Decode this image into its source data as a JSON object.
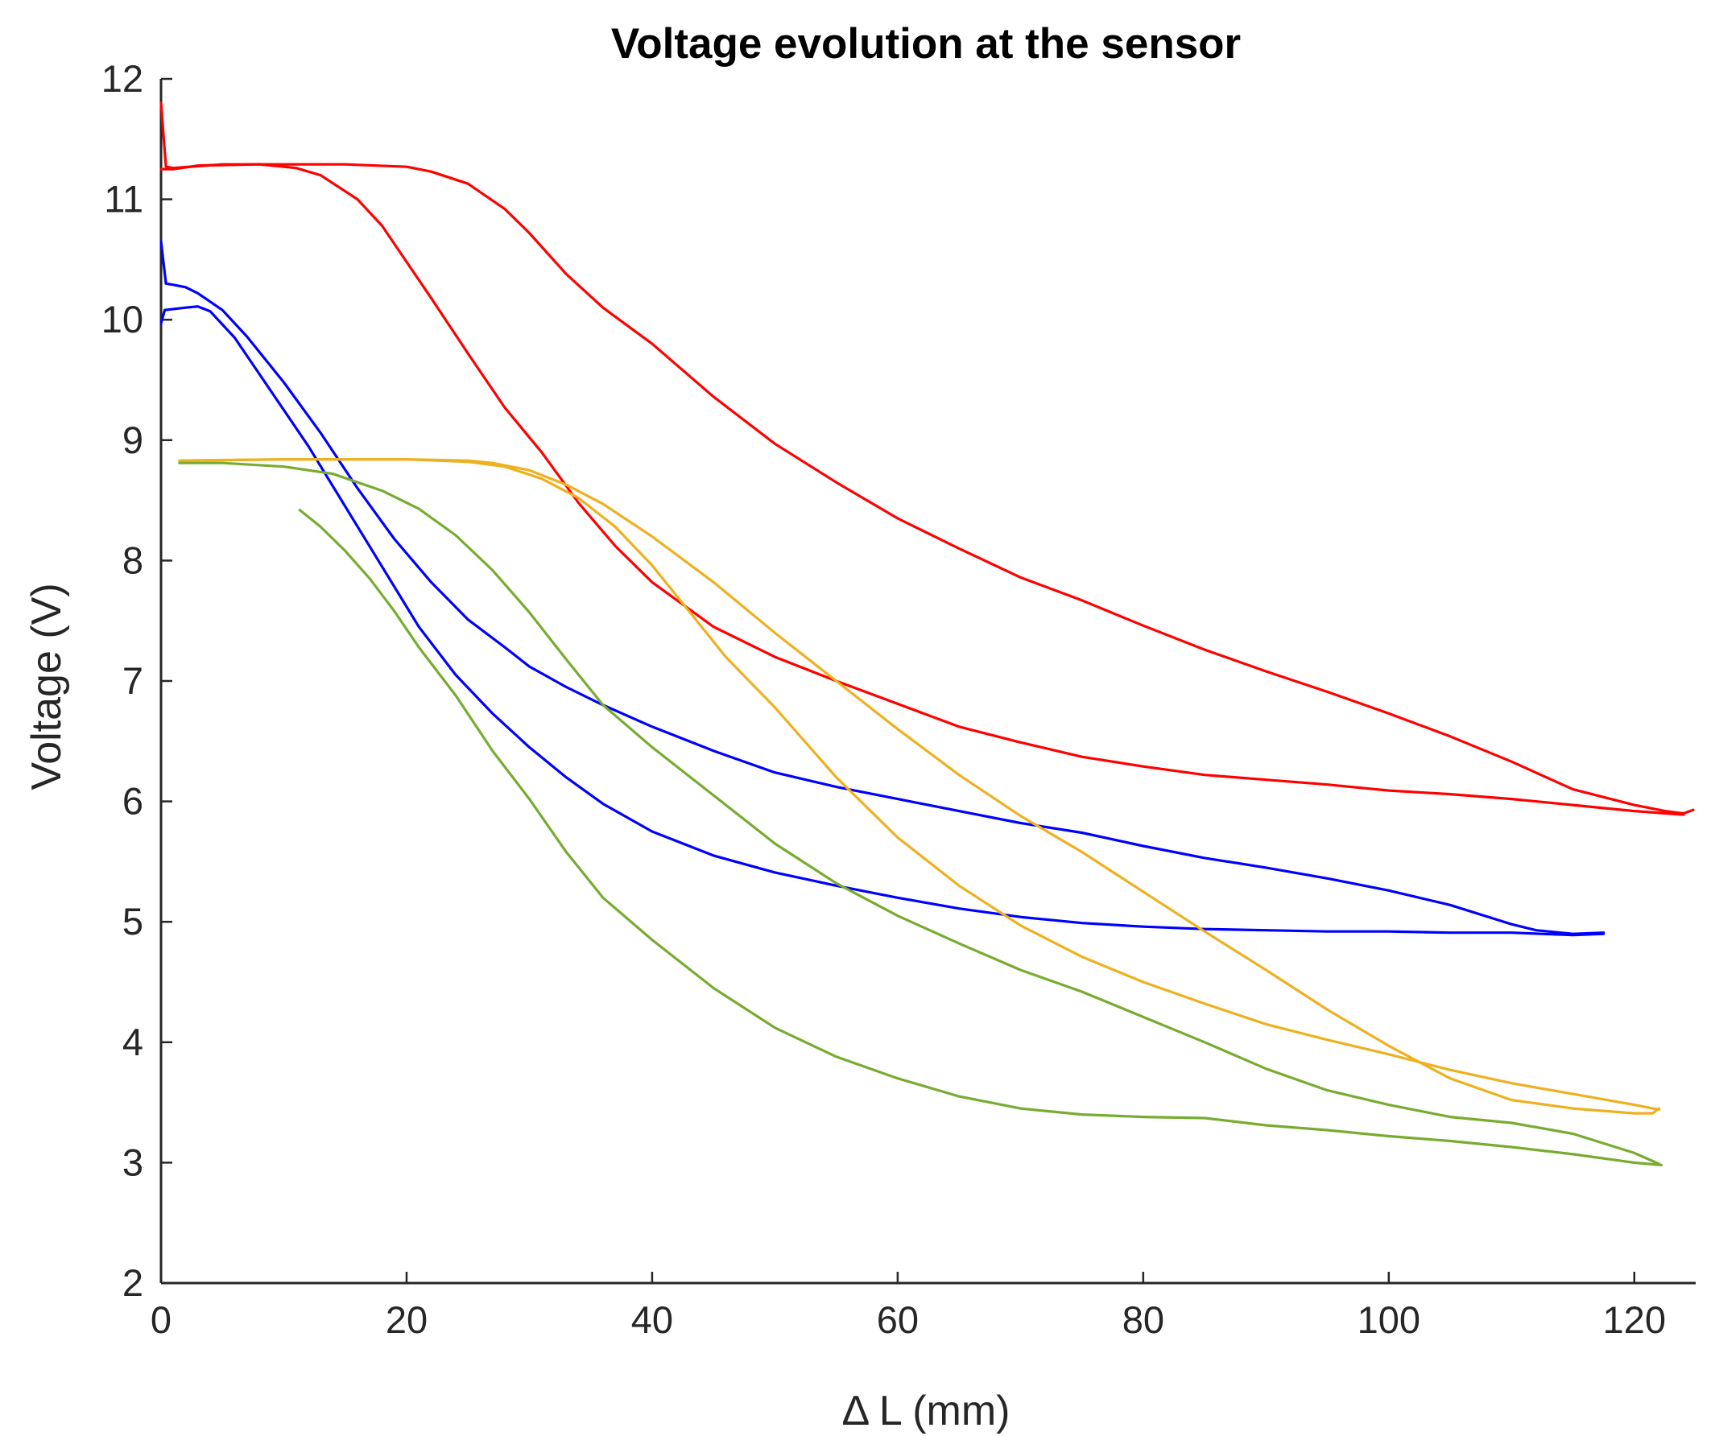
{
  "chart_data": {
    "type": "line",
    "title": "Voltage evolution at the sensor",
    "xlabel": "Δ L (mm)",
    "ylabel": "Voltage (V)",
    "xlim": [
      0,
      125
    ],
    "ylim": [
      2,
      12
    ],
    "xticks": [
      0,
      20,
      40,
      60,
      80,
      100,
      120
    ],
    "yticks": [
      2,
      3,
      4,
      5,
      6,
      7,
      8,
      9,
      10,
      11,
      12
    ],
    "grid": false,
    "legend": "none",
    "series": [
      {
        "name": "red-upper",
        "color": "#ff0000",
        "points": [
          [
            0,
            11.8
          ],
          [
            0.4,
            11.27
          ],
          [
            1,
            11.26
          ],
          [
            5,
            11.29
          ],
          [
            10,
            11.29
          ],
          [
            15,
            11.29
          ],
          [
            20,
            11.27
          ],
          [
            22,
            11.23
          ],
          [
            25,
            11.13
          ],
          [
            28,
            10.92
          ],
          [
            30,
            10.72
          ],
          [
            33,
            10.38
          ],
          [
            36,
            10.1
          ],
          [
            40,
            9.8
          ],
          [
            45,
            9.36
          ],
          [
            50,
            8.97
          ],
          [
            55,
            8.65
          ],
          [
            60,
            8.35
          ],
          [
            65,
            8.1
          ],
          [
            70,
            7.86
          ],
          [
            75,
            7.67
          ],
          [
            80,
            7.46
          ],
          [
            85,
            7.26
          ],
          [
            90,
            7.08
          ],
          [
            95,
            6.91
          ],
          [
            100,
            6.73
          ],
          [
            105,
            6.54
          ],
          [
            110,
            6.33
          ],
          [
            115,
            6.1
          ],
          [
            120,
            5.97
          ],
          [
            122.5,
            5.92
          ],
          [
            124,
            5.9
          ],
          [
            124.8,
            5.93
          ]
        ]
      },
      {
        "name": "red-lower",
        "color": "#ff0000",
        "points": [
          [
            0,
            11.25
          ],
          [
            1,
            11.25
          ],
          [
            3,
            11.28
          ],
          [
            8,
            11.29
          ],
          [
            11,
            11.26
          ],
          [
            13,
            11.2
          ],
          [
            16,
            11.0
          ],
          [
            18,
            10.78
          ],
          [
            20,
            10.48
          ],
          [
            22,
            10.18
          ],
          [
            25,
            9.72
          ],
          [
            28,
            9.27
          ],
          [
            31,
            8.9
          ],
          [
            34,
            8.48
          ],
          [
            37,
            8.12
          ],
          [
            40,
            7.82
          ],
          [
            45,
            7.45
          ],
          [
            50,
            7.2
          ],
          [
            55,
            7.0
          ],
          [
            60,
            6.81
          ],
          [
            65,
            6.62
          ],
          [
            70,
            6.49
          ],
          [
            75,
            6.37
          ],
          [
            80,
            6.29
          ],
          [
            85,
            6.22
          ],
          [
            90,
            6.18
          ],
          [
            95,
            6.14
          ],
          [
            100,
            6.09
          ],
          [
            105,
            6.06
          ],
          [
            110,
            6.02
          ],
          [
            115,
            5.97
          ],
          [
            120,
            5.92
          ],
          [
            124,
            5.89
          ]
        ]
      },
      {
        "name": "blue-upper",
        "color": "#0000ff",
        "points": [
          [
            0,
            10.65
          ],
          [
            0.4,
            10.3
          ],
          [
            1,
            10.29
          ],
          [
            2,
            10.27
          ],
          [
            3,
            10.22
          ],
          [
            5,
            10.08
          ],
          [
            7,
            9.86
          ],
          [
            10,
            9.48
          ],
          [
            13,
            9.06
          ],
          [
            16,
            8.6
          ],
          [
            19,
            8.18
          ],
          [
            22,
            7.82
          ],
          [
            25,
            7.51
          ],
          [
            28,
            7.28
          ],
          [
            30,
            7.12
          ],
          [
            33,
            6.95
          ],
          [
            36,
            6.8
          ],
          [
            40,
            6.62
          ],
          [
            45,
            6.42
          ],
          [
            50,
            6.24
          ],
          [
            55,
            6.12
          ],
          [
            60,
            6.02
          ],
          [
            65,
            5.92
          ],
          [
            70,
            5.82
          ],
          [
            75,
            5.74
          ],
          [
            80,
            5.63
          ],
          [
            85,
            5.53
          ],
          [
            90,
            5.45
          ],
          [
            95,
            5.36
          ],
          [
            100,
            5.26
          ],
          [
            105,
            5.14
          ],
          [
            110,
            4.98
          ],
          [
            112,
            4.93
          ],
          [
            115,
            4.9
          ],
          [
            117.5,
            4.91
          ]
        ]
      },
      {
        "name": "blue-lower",
        "color": "#0000ff",
        "points": [
          [
            0,
            9.97
          ],
          [
            0.3,
            10.08
          ],
          [
            2,
            10.1
          ],
          [
            3,
            10.11
          ],
          [
            4,
            10.07
          ],
          [
            6,
            9.85
          ],
          [
            8,
            9.55
          ],
          [
            10,
            9.25
          ],
          [
            12,
            8.95
          ],
          [
            15,
            8.45
          ],
          [
            18,
            7.95
          ],
          [
            21,
            7.45
          ],
          [
            24,
            7.05
          ],
          [
            27,
            6.73
          ],
          [
            30,
            6.45
          ],
          [
            33,
            6.2
          ],
          [
            36,
            5.98
          ],
          [
            40,
            5.75
          ],
          [
            45,
            5.55
          ],
          [
            50,
            5.41
          ],
          [
            55,
            5.3
          ],
          [
            60,
            5.2
          ],
          [
            65,
            5.11
          ],
          [
            70,
            5.04
          ],
          [
            75,
            4.99
          ],
          [
            80,
            4.96
          ],
          [
            85,
            4.94
          ],
          [
            90,
            4.93
          ],
          [
            95,
            4.92
          ],
          [
            100,
            4.92
          ],
          [
            105,
            4.91
          ],
          [
            110,
            4.91
          ],
          [
            115,
            4.89
          ],
          [
            117.5,
            4.9
          ]
        ]
      },
      {
        "name": "orange-upper",
        "color": "#edb120",
        "points": [
          [
            1.5,
            8.83
          ],
          [
            10,
            8.84
          ],
          [
            20,
            8.84
          ],
          [
            25,
            8.83
          ],
          [
            27,
            8.81
          ],
          [
            30,
            8.75
          ],
          [
            33,
            8.63
          ],
          [
            36,
            8.47
          ],
          [
            40,
            8.2
          ],
          [
            45,
            7.82
          ],
          [
            50,
            7.4
          ],
          [
            55,
            7.0
          ],
          [
            60,
            6.6
          ],
          [
            65,
            6.22
          ],
          [
            70,
            5.88
          ],
          [
            75,
            5.58
          ],
          [
            80,
            5.25
          ],
          [
            85,
            4.92
          ],
          [
            90,
            4.6
          ],
          [
            95,
            4.27
          ],
          [
            100,
            3.97
          ],
          [
            105,
            3.7
          ],
          [
            110,
            3.52
          ],
          [
            115,
            3.45
          ],
          [
            120,
            3.41
          ],
          [
            121.5,
            3.41
          ],
          [
            122,
            3.45
          ]
        ]
      },
      {
        "name": "orange-lower",
        "color": "#edb120",
        "points": [
          [
            1.5,
            8.83
          ],
          [
            10,
            8.84
          ],
          [
            20,
            8.84
          ],
          [
            25,
            8.82
          ],
          [
            28,
            8.78
          ],
          [
            31,
            8.68
          ],
          [
            34,
            8.52
          ],
          [
            37,
            8.28
          ],
          [
            40,
            7.96
          ],
          [
            43,
            7.58
          ],
          [
            46,
            7.2
          ],
          [
            50,
            6.78
          ],
          [
            55,
            6.2
          ],
          [
            60,
            5.7
          ],
          [
            65,
            5.3
          ],
          [
            70,
            4.97
          ],
          [
            75,
            4.71
          ],
          [
            80,
            4.5
          ],
          [
            85,
            4.32
          ],
          [
            90,
            4.15
          ],
          [
            95,
            4.02
          ],
          [
            100,
            3.9
          ],
          [
            105,
            3.77
          ],
          [
            110,
            3.66
          ],
          [
            115,
            3.57
          ],
          [
            120,
            3.48
          ],
          [
            122,
            3.44
          ]
        ]
      },
      {
        "name": "green-upper",
        "color": "#77ac30",
        "points": [
          [
            1.5,
            8.81
          ],
          [
            5,
            8.81
          ],
          [
            10,
            8.78
          ],
          [
            14,
            8.72
          ],
          [
            18,
            8.58
          ],
          [
            21,
            8.43
          ],
          [
            24,
            8.21
          ],
          [
            27,
            7.92
          ],
          [
            30,
            7.57
          ],
          [
            33,
            7.18
          ],
          [
            36,
            6.8
          ],
          [
            40,
            6.45
          ],
          [
            45,
            6.05
          ],
          [
            50,
            5.65
          ],
          [
            55,
            5.32
          ],
          [
            60,
            5.05
          ],
          [
            65,
            4.82
          ],
          [
            70,
            4.6
          ],
          [
            75,
            4.42
          ],
          [
            80,
            4.21
          ],
          [
            85,
            4.0
          ],
          [
            90,
            3.78
          ],
          [
            95,
            3.6
          ],
          [
            100,
            3.48
          ],
          [
            105,
            3.38
          ],
          [
            110,
            3.33
          ],
          [
            115,
            3.24
          ],
          [
            120,
            3.08
          ],
          [
            122,
            2.99
          ]
        ]
      },
      {
        "name": "green-lower",
        "color": "#77ac30",
        "points": [
          [
            11.3,
            8.42
          ],
          [
            13,
            8.28
          ],
          [
            15,
            8.08
          ],
          [
            17,
            7.85
          ],
          [
            19,
            7.58
          ],
          [
            21,
            7.28
          ],
          [
            24,
            6.88
          ],
          [
            27,
            6.42
          ],
          [
            30,
            6.02
          ],
          [
            33,
            5.58
          ],
          [
            36,
            5.2
          ],
          [
            40,
            4.85
          ],
          [
            45,
            4.45
          ],
          [
            50,
            4.12
          ],
          [
            55,
            3.88
          ],
          [
            60,
            3.7
          ],
          [
            65,
            3.55
          ],
          [
            70,
            3.45
          ],
          [
            75,
            3.4
          ],
          [
            80,
            3.38
          ],
          [
            85,
            3.37
          ],
          [
            90,
            3.31
          ],
          [
            95,
            3.27
          ],
          [
            100,
            3.22
          ],
          [
            105,
            3.18
          ],
          [
            110,
            3.13
          ],
          [
            115,
            3.07
          ],
          [
            120,
            3.0
          ],
          [
            122.2,
            2.98
          ]
        ]
      }
    ]
  }
}
